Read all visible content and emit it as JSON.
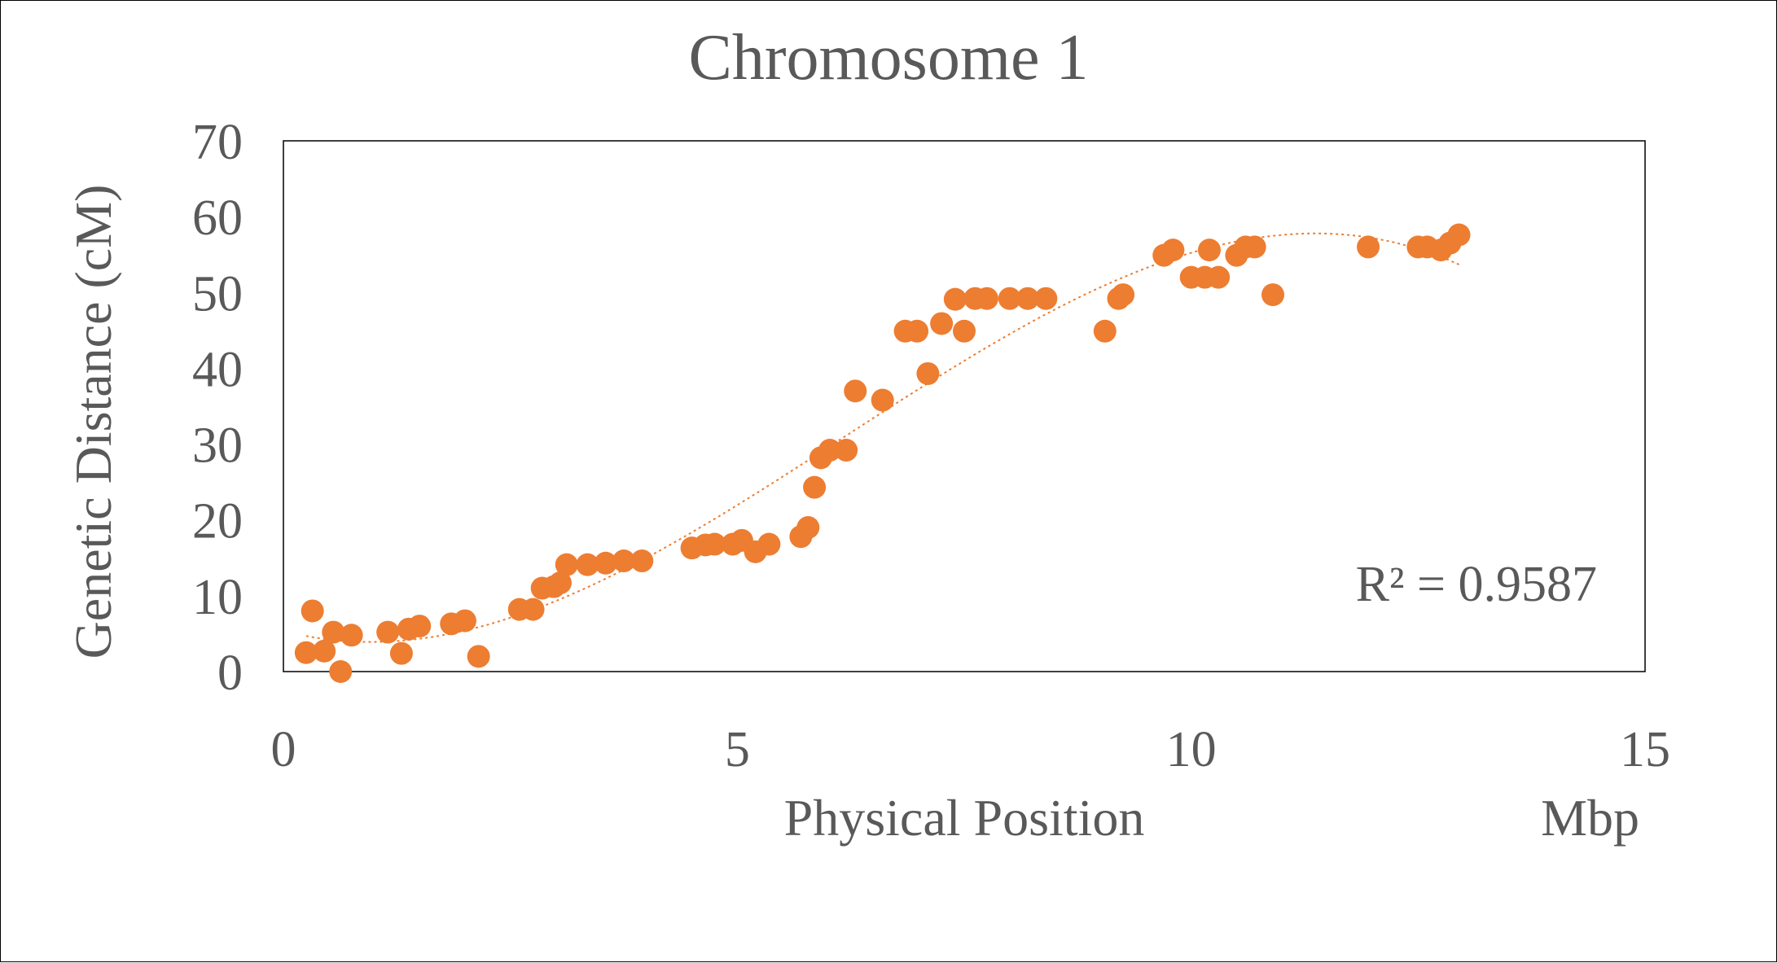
{
  "chart_data": {
    "type": "scatter",
    "title": "Chromosome 1",
    "xlabel": "Physical Position",
    "xunit": "Mbp",
    "ylabel": "Genetic Distance (cM)",
    "xlim": [
      0,
      15
    ],
    "ylim": [
      0,
      70
    ],
    "xticks": [
      "0",
      "5",
      "10",
      "15"
    ],
    "yticks": [
      "0",
      "10",
      "20",
      "30",
      "40",
      "50",
      "60",
      "70"
    ],
    "grid": false,
    "trendline": {
      "type": "polynomial",
      "r2_label": "R² = 0.9587"
    },
    "colors": {
      "marker": "#ED7D31",
      "trendline": "#ED7D31",
      "text": "#595959",
      "axis": "#000000"
    },
    "series": [
      {
        "points": [
          [
            0.25,
            2.5
          ],
          [
            0.32,
            8.0
          ],
          [
            0.45,
            2.7
          ],
          [
            0.55,
            5.2
          ],
          [
            0.63,
            0.0
          ],
          [
            0.75,
            4.8
          ],
          [
            1.15,
            5.2
          ],
          [
            1.3,
            2.4
          ],
          [
            1.38,
            5.6
          ],
          [
            1.5,
            6.0
          ],
          [
            1.85,
            6.3
          ],
          [
            2.0,
            6.7
          ],
          [
            2.15,
            2.0
          ],
          [
            2.6,
            8.2
          ],
          [
            2.75,
            8.2
          ],
          [
            2.85,
            11.0
          ],
          [
            2.98,
            11.2
          ],
          [
            3.05,
            11.7
          ],
          [
            3.12,
            14.1
          ],
          [
            3.35,
            14.1
          ],
          [
            3.55,
            14.3
          ],
          [
            3.75,
            14.6
          ],
          [
            3.95,
            14.6
          ],
          [
            4.5,
            16.3
          ],
          [
            4.65,
            16.7
          ],
          [
            4.75,
            16.8
          ],
          [
            4.95,
            16.8
          ],
          [
            5.05,
            17.3
          ],
          [
            5.2,
            15.8
          ],
          [
            5.35,
            16.8
          ],
          [
            5.7,
            17.8
          ],
          [
            5.78,
            19.0
          ],
          [
            5.85,
            24.3
          ],
          [
            5.92,
            28.2
          ],
          [
            6.02,
            29.2
          ],
          [
            6.2,
            29.2
          ],
          [
            6.3,
            37.0
          ],
          [
            6.6,
            35.8
          ],
          [
            6.85,
            44.9
          ],
          [
            6.98,
            44.9
          ],
          [
            7.1,
            39.3
          ],
          [
            7.25,
            45.9
          ],
          [
            7.4,
            49.1
          ],
          [
            7.5,
            44.9
          ],
          [
            7.62,
            49.2
          ],
          [
            7.75,
            49.2
          ],
          [
            8.0,
            49.2
          ],
          [
            8.2,
            49.2
          ],
          [
            8.4,
            49.2
          ],
          [
            9.05,
            44.9
          ],
          [
            9.2,
            49.2
          ],
          [
            9.25,
            49.7
          ],
          [
            9.7,
            54.9
          ],
          [
            9.8,
            55.6
          ],
          [
            10.0,
            52.0
          ],
          [
            10.15,
            52.0
          ],
          [
            10.2,
            55.6
          ],
          [
            10.3,
            52.0
          ],
          [
            10.5,
            54.9
          ],
          [
            10.6,
            56.0
          ],
          [
            10.7,
            56.0
          ],
          [
            10.9,
            49.7
          ],
          [
            11.95,
            56.0
          ],
          [
            12.5,
            56.0
          ],
          [
            12.6,
            56.0
          ],
          [
            12.75,
            55.6
          ],
          [
            12.85,
            56.5
          ],
          [
            12.95,
            57.6
          ]
        ]
      }
    ]
  }
}
